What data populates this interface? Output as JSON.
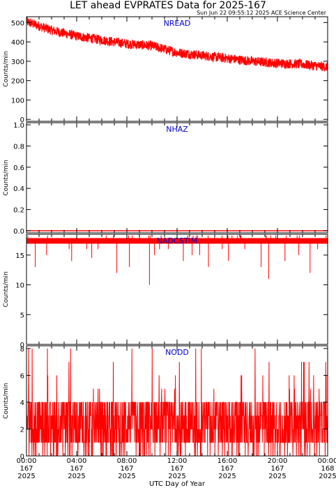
{
  "header": {
    "title": "LET ahead EVPRATES Data for 2025-167",
    "timestamp": "Sun Jun 22 09:55:12 2025 ACE Science Center"
  },
  "colors": {
    "series": "#ff0000",
    "panel_label": "#0000cc",
    "axes": "#000000"
  },
  "chart_data": [
    {
      "type": "line",
      "name": "NREAD",
      "panel_label": "NREAD",
      "ylabel": "Counts/min",
      "ylim": [
        -10,
        530
      ],
      "yticks": [
        0,
        100,
        200,
        300,
        400,
        500
      ],
      "xlim": [
        0,
        24
      ],
      "trend_keypoints": [
        [
          0,
          505
        ],
        [
          2,
          460
        ],
        [
          4,
          430
        ],
        [
          6,
          410
        ],
        [
          8,
          390
        ],
        [
          10,
          380
        ],
        [
          12,
          345
        ],
        [
          14,
          330
        ],
        [
          16,
          315
        ],
        [
          18,
          300
        ],
        [
          20,
          290
        ],
        [
          22,
          285
        ],
        [
          24,
          270
        ]
      ],
      "noise_amplitude": 25,
      "grid": false
    },
    {
      "type": "line",
      "name": "NHAZ",
      "panel_label": "NHAZ",
      "ylabel": "Counts/min",
      "ylim": [
        -0.02,
        1.02
      ],
      "yticks": [
        0.0,
        0.2,
        0.4,
        0.6,
        0.8,
        1.0
      ],
      "xlim": [
        0,
        24
      ],
      "constant_value": 0,
      "grid": false
    },
    {
      "type": "line",
      "name": "NADCSTIM",
      "panel_label": "NADCSTIM",
      "ylabel": "Counts/min",
      "ylim": [
        0,
        18.5
      ],
      "yticks": [
        0,
        5,
        10,
        15
      ],
      "xlim": [
        0,
        24
      ],
      "baseline_value": 17.5,
      "dips": [
        [
          0.7,
          13
        ],
        [
          1.6,
          15
        ],
        [
          3.4,
          16
        ],
        [
          3.6,
          14
        ],
        [
          4.8,
          16
        ],
        [
          5.2,
          14.5
        ],
        [
          5.7,
          16
        ],
        [
          7.2,
          12
        ],
        [
          8.2,
          13
        ],
        [
          9.8,
          10
        ],
        [
          10.2,
          15
        ],
        [
          10.6,
          16
        ],
        [
          11.3,
          16
        ],
        [
          12.5,
          14
        ],
        [
          13.2,
          15
        ],
        [
          13.8,
          15
        ],
        [
          14.5,
          13
        ],
        [
          15.6,
          16
        ],
        [
          16.1,
          14
        ],
        [
          17.4,
          16
        ],
        [
          18.7,
          13
        ],
        [
          19.3,
          11
        ],
        [
          20.6,
          14
        ],
        [
          21.7,
          15
        ],
        [
          22.6,
          12
        ],
        [
          23.2,
          16
        ]
      ],
      "grid": false
    },
    {
      "type": "line",
      "name": "NODD",
      "panel_label": "NODD",
      "ylabel": "Counts/min",
      "ylim": [
        0,
        8.2
      ],
      "yticks": [
        0,
        2,
        4,
        6,
        8
      ],
      "xlim": [
        0,
        24
      ],
      "value_range": [
        0,
        8
      ],
      "typical_range": [
        1,
        4
      ],
      "grid": false
    }
  ],
  "x_axis": {
    "label": "UTC Day of Year",
    "ticks": [
      {
        "hour": 0,
        "time": "00:00",
        "day": "167",
        "year": "2025"
      },
      {
        "hour": 4,
        "time": "04:00",
        "day": "167",
        "year": "2025"
      },
      {
        "hour": 8,
        "time": "08:00",
        "day": "167",
        "year": "2025"
      },
      {
        "hour": 12,
        "time": "12:00",
        "day": "167",
        "year": "2025"
      },
      {
        "hour": 16,
        "time": "16:00",
        "day": "167",
        "year": "2025"
      },
      {
        "hour": 20,
        "time": "20:00",
        "day": "167",
        "year": "2025"
      },
      {
        "hour": 24,
        "time": "00:00",
        "day": "168",
        "year": "2025"
      }
    ]
  }
}
